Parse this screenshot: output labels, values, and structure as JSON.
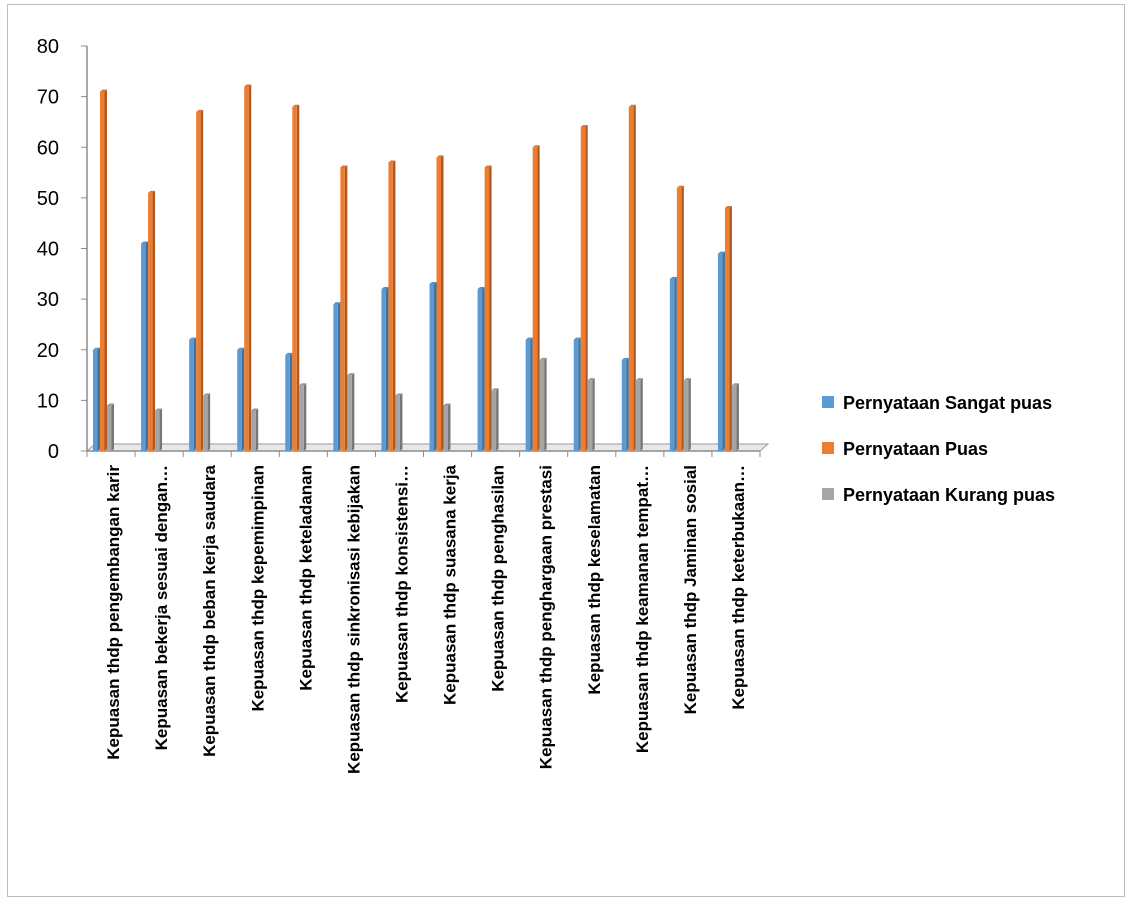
{
  "chart_data": {
    "type": "bar",
    "title": "",
    "xlabel": "",
    "ylabel": "",
    "ylim": [
      0,
      80
    ],
    "yticks": [
      0,
      10,
      20,
      30,
      40,
      50,
      60,
      70,
      80
    ],
    "categories": [
      "Kepuasan thdp pengembangan karir",
      "Kepuasan bekerja sesuai dengan…",
      "Kepuasan thdp beban kerja saudara",
      "Kepuasan thdp  kepemimpinan",
      "Kepuasan thdp keteladanan",
      "Kepuasan thdp sinkronisasi kebijakan",
      "Kepuasan thdp  konsistensi…",
      "Kepuasan thdp suasana kerja",
      "Kepuasan thdp penghasilan",
      "Kepuasan thdp  penghargaan prestasi",
      "Kepuasan thdp  keselamatan",
      "Kepuasan thdp  keamanan tempat…",
      "Kepuasan thdp Jaminan sosial",
      "Kepuasan thdp keterbukaan…"
    ],
    "series": [
      {
        "name": "Pernyataan Sangat puas",
        "color": "#5b9bd5",
        "values": [
          20,
          41,
          22,
          20,
          19,
          29,
          32,
          33,
          32,
          22,
          22,
          18,
          34,
          39
        ]
      },
      {
        "name": "Pernyataan Puas",
        "color": "#ed7d31",
        "values": [
          71,
          51,
          67,
          72,
          68,
          56,
          57,
          58,
          56,
          60,
          64,
          68,
          52,
          48
        ]
      },
      {
        "name": "Pernyataan Kurang puas",
        "color": "#a5a5a5",
        "values": [
          9,
          8,
          11,
          8,
          13,
          15,
          11,
          9,
          12,
          18,
          14,
          14,
          14,
          13
        ]
      }
    ],
    "grid": false,
    "legend_position": "right"
  }
}
